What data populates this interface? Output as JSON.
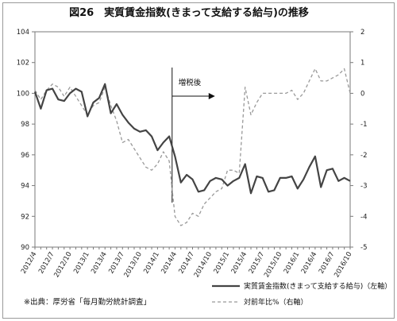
{
  "chart_data": {
    "type": "line",
    "title": "図26　実質賃金指数(きまって支給する給与)の推移",
    "x": [
      "2012/4",
      "2012/5",
      "2012/6",
      "2012/7",
      "2012/8",
      "2012/9",
      "2012/10",
      "2012/11",
      "2012/12",
      "2013/1",
      "2013/2",
      "2013/3",
      "2013/4",
      "2013/5",
      "2013/6",
      "2013/7",
      "2013/8",
      "2013/9",
      "2013/10",
      "2013/11",
      "2013/12",
      "2014/1",
      "2014/2",
      "2014/3",
      "2014/4",
      "2014/5",
      "2014/6",
      "2014/7",
      "2014/8",
      "2014/9",
      "2014/10",
      "2014/11",
      "2014/12",
      "2015/1",
      "2015/2",
      "2015/3",
      "2015/4",
      "2015/5",
      "2015/6",
      "2015/7",
      "2015/8",
      "2015/9",
      "2015/10",
      "2015/11",
      "2015/12",
      "2016/1",
      "2016/2",
      "2016/3",
      "2016/4",
      "2016/5",
      "2016/6",
      "2016/7",
      "2016/8",
      "2016/9",
      "2016/10"
    ],
    "x_tick_labels": [
      "2012/4",
      "2012/7",
      "2012/10",
      "2013/1",
      "2013/4",
      "2013/7",
      "2013/10",
      "2014/1",
      "2014/4",
      "2014/7",
      "2014/10",
      "2015/1",
      "2015/4",
      "2015/7",
      "2015/10",
      "2016/1",
      "2016/4",
      "2016/7",
      "2016/10"
    ],
    "y_left": {
      "ylim": [
        90,
        104
      ],
      "ticks": [
        90,
        92,
        94,
        96,
        98,
        100,
        102,
        104
      ]
    },
    "y_right": {
      "ylim": [
        -5,
        2
      ],
      "ticks": [
        -5,
        -4,
        -3,
        -2,
        -1,
        0,
        1,
        2
      ]
    },
    "series": [
      {
        "name": "実質賃金指数(きまって支給する給与)（左軸）",
        "axis": "left",
        "style": "solid",
        "color": "#444444",
        "values": [
          100.1,
          99.0,
          100.2,
          100.3,
          99.6,
          99.5,
          100.0,
          100.3,
          100.1,
          98.5,
          99.4,
          99.7,
          100.6,
          98.7,
          99.3,
          98.6,
          98.1,
          97.7,
          97.5,
          97.6,
          97.2,
          96.3,
          96.8,
          97.2,
          95.9,
          94.2,
          94.7,
          94.4,
          93.6,
          93.7,
          94.3,
          94.5,
          94.4,
          94.0,
          94.3,
          94.5,
          95.4,
          93.5,
          94.6,
          94.5,
          93.6,
          93.7,
          94.5,
          94.5,
          94.6,
          93.8,
          94.4,
          95.2,
          95.9,
          93.9,
          95.0,
          95.1,
          94.3,
          94.5,
          94.3
        ]
      },
      {
        "name": "対前年比%（右軸）",
        "axis": "right",
        "style": "dashed",
        "color": "#999999",
        "values": [
          0.1,
          -0.2,
          0.1,
          0.3,
          0.2,
          -0.1,
          0.2,
          -0.1,
          -0.4,
          -0.7,
          -0.4,
          -0.3,
          0.2,
          -0.4,
          -0.9,
          -1.6,
          -1.5,
          -1.8,
          -2.1,
          -2.4,
          -2.5,
          -2.3,
          -1.9,
          -2.2,
          -4.0,
          -4.3,
          -4.2,
          -3.9,
          -4.0,
          -3.6,
          -3.4,
          -3.2,
          -3.1,
          -2.5,
          -2.5,
          -2.6,
          0.2,
          -0.7,
          -0.3,
          0.0,
          0.0,
          0.0,
          0.0,
          0.0,
          0.1,
          -0.2,
          0.0,
          0.4,
          0.8,
          0.4,
          0.4,
          0.5,
          0.6,
          0.8,
          0.0
        ]
      }
    ],
    "annotation": {
      "label": "増税後",
      "at": "2014/4"
    },
    "legend_position": "bottom-right",
    "grid": false
  },
  "note": "※出典：厚労省「毎月勤労統計調査」"
}
